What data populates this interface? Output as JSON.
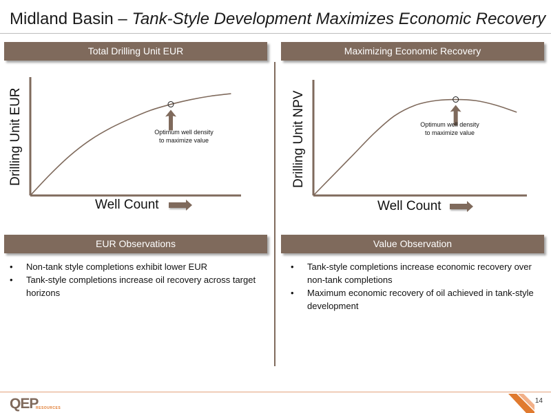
{
  "title": {
    "prefix": "Midland Basin – ",
    "emphasis": "Tank-Style Development Maximizes Economic Recovery"
  },
  "left_panel": {
    "banner": "Total Drilling Unit EUR",
    "ylabel": "Drilling Unit EUR",
    "xlabel": "Well Count",
    "annotation": "Optimum well density to maximize value",
    "obs_banner": "EUR Observations",
    "bullets": [
      "Non-tank style completions exhibit lower EUR",
      "Tank-style completions increase oil recovery across target horizons"
    ]
  },
  "right_panel": {
    "banner": "Maximizing Economic Recovery",
    "ylabel": "Drilling Unit NPV",
    "xlabel": "Well Count",
    "annotation": "Optimum well density to maximize value",
    "obs_banner": "Value Observation",
    "bullets": [
      "Tank-style completions increase economic recovery over non-tank completions",
      "Maximum economic recovery of oil achieved in tank-style development"
    ]
  },
  "footer": {
    "logo_main": "QEP",
    "logo_sub": "RESOURCES",
    "page_number": "14"
  },
  "chart_data": [
    {
      "type": "line",
      "ylabel": "Drilling Unit EUR",
      "xlabel": "Well Count",
      "x": [
        0,
        1,
        2,
        3,
        4,
        5,
        6,
        7,
        8,
        9,
        10
      ],
      "y": [
        0,
        18,
        34,
        47,
        57,
        65,
        72,
        77,
        81,
        84,
        86
      ],
      "xlim": [
        0,
        10.5
      ],
      "ylim": [
        0,
        100
      ],
      "marker_index": 7,
      "annotation": "Optimum well density to maximize value",
      "grid": false
    },
    {
      "type": "line",
      "ylabel": "Drilling Unit NPV",
      "xlabel": "Well Count",
      "x": [
        0,
        1,
        2,
        3,
        4,
        5,
        6,
        7,
        8,
        9,
        10
      ],
      "y": [
        0,
        18,
        36,
        54,
        69,
        78,
        82,
        83,
        82,
        78,
        72
      ],
      "xlim": [
        0,
        10.5
      ],
      "ylim": [
        0,
        100
      ],
      "marker_index": 7,
      "annotation": "Optimum well density to maximize value",
      "grid": false
    }
  ],
  "colors": {
    "accent": "#7f6a5c",
    "footer_rule": "#e3a27a",
    "corner_orange": "#e07a2f"
  }
}
